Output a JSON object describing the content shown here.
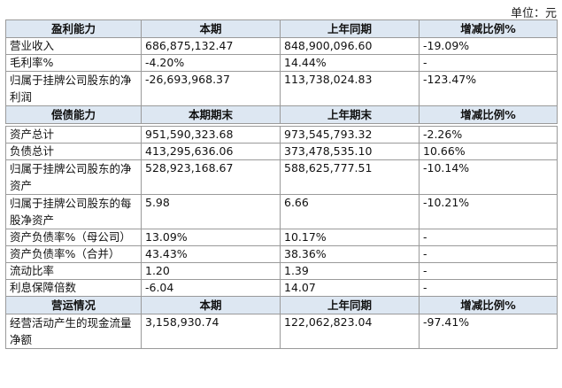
{
  "unit_label": "单位：元",
  "profitability": {
    "headers": [
      "盈利能力",
      "本期",
      "上年同期",
      "增减比例%"
    ],
    "rows": [
      [
        "营业收入",
        "686,875,132.47",
        "848,900,096.60",
        "-19.09%"
      ],
      [
        "毛利率%",
        "-4.20%",
        "14.44%",
        "-"
      ],
      [
        "归属于挂牌公司股东的净利润",
        "-26,693,968.37",
        "113,738,024.83",
        "-123.47%"
      ]
    ]
  },
  "solvency": {
    "headers": [
      "偿债能力",
      "本期期末",
      "上年期末",
      "增减比例%"
    ],
    "rows": [
      [
        "资产总计",
        "951,590,323.68",
        "973,545,793.32",
        "-2.26%"
      ],
      [
        "负债总计",
        "413,295,636.06",
        "373,478,535.10",
        "10.66%"
      ],
      [
        "归属于挂牌公司股东的净资产",
        "528,923,168.67",
        "588,625,777.51",
        "-10.14%"
      ],
      [
        "归属于挂牌公司股东的每股净资产",
        "5.98",
        "6.66",
        "-10.21%"
      ],
      [
        "资产负债率%（母公司）",
        "13.09%",
        "10.17%",
        "-"
      ],
      [
        "资产负债率%（合并）",
        "43.43%",
        "38.36%",
        "-"
      ],
      [
        "流动比率",
        "1.20",
        "1.39",
        "-"
      ],
      [
        "利息保障倍数",
        "-6.04",
        "14.07",
        "-"
      ]
    ]
  },
  "operations": {
    "headers": [
      "营运情况",
      "本期",
      "上年同期",
      "增减比例%"
    ],
    "rows": [
      [
        "经营活动产生的现金流量净额",
        "3,158,930.74",
        "122,062,823.04",
        "-97.41%"
      ]
    ]
  }
}
